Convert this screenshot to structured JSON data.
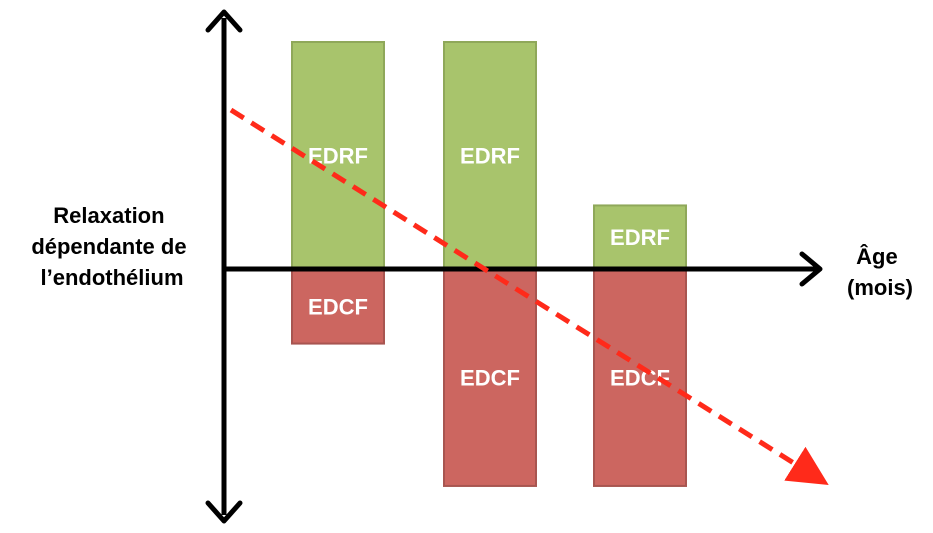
{
  "y_axis_label": [
    "Relaxation",
    "dépendante de",
    "l’endothélium"
  ],
  "x_axis_label": [
    "Âge",
    "(mois)"
  ],
  "colors": {
    "edrf_fill": "#a8c46c",
    "edrf_stroke": "#8fa85a",
    "edcf_fill": "#cc6660",
    "edcf_stroke": "#a85550",
    "trend": "#ff2a1a"
  },
  "chart_data": {
    "type": "bar",
    "categories": [
      "",
      "",
      ""
    ],
    "series": [
      {
        "name": "EDRF",
        "values": [
          1.0,
          1.0,
          0.28
        ]
      },
      {
        "name": "EDCF",
        "values": [
          -0.33,
          -0.96,
          -0.96
        ]
      }
    ],
    "trend_line": {
      "style": "dashed",
      "direction": "decreasing"
    }
  }
}
